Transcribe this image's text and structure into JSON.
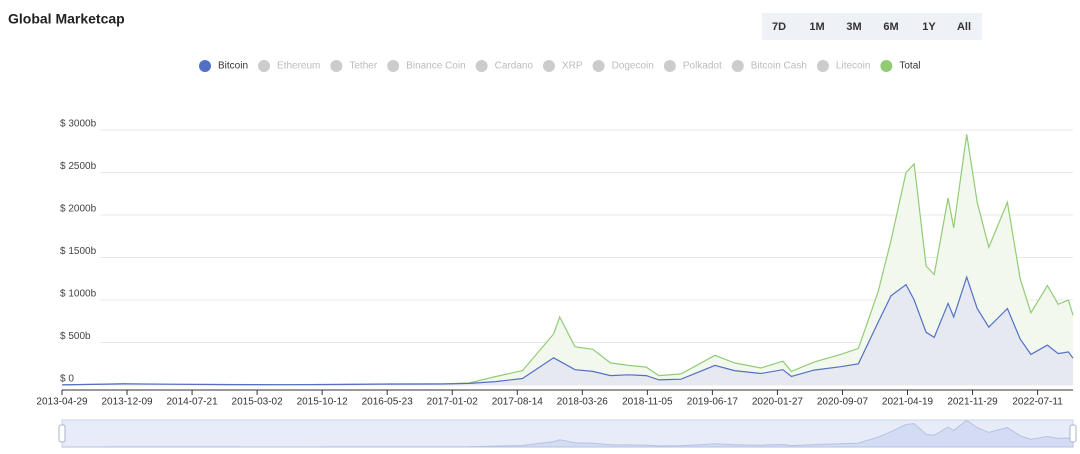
{
  "chart_data": {
    "type": "area",
    "title": "Global Marketcap",
    "range_buttons": [
      "7D",
      "1M",
      "3M",
      "6M",
      "1Y",
      "All"
    ],
    "x": [
      "2013-04-29",
      "2013-12-01",
      "2014-06-01",
      "2014-12-01",
      "2015-06-01",
      "2015-12-01",
      "2016-06-01",
      "2016-12-01",
      "2017-03-01",
      "2017-06-01",
      "2017-09-01",
      "2017-12-17",
      "2018-01-07",
      "2018-03-01",
      "2018-05-01",
      "2018-07-01",
      "2018-09-01",
      "2018-11-01",
      "2018-12-15",
      "2019-03-01",
      "2019-06-26",
      "2019-09-01",
      "2019-12-01",
      "2020-02-15",
      "2020-03-15",
      "2020-06-01",
      "2020-09-01",
      "2020-11-01",
      "2021-01-08",
      "2021-02-21",
      "2021-04-14",
      "2021-05-12",
      "2021-06-22",
      "2021-07-20",
      "2021-09-06",
      "2021-09-25",
      "2021-11-09",
      "2021-12-15",
      "2022-01-24",
      "2022-03-29",
      "2022-05-12",
      "2022-06-18",
      "2022-08-14",
      "2022-09-20",
      "2022-10-25",
      "2022-11-10"
    ],
    "series": [
      {
        "name": "Bitcoin",
        "color": "#5470c6",
        "visible": true,
        "fill": "#e6e9f0",
        "values": [
          1.5,
          13,
          8,
          5,
          3.5,
          6,
          10,
          12,
          19,
          40,
          77,
          320,
          280,
          180,
          160,
          110,
          120,
          110,
          60,
          68,
          230,
          170,
          135,
          180,
          100,
          175,
          215,
          250,
          740,
          1050,
          1180,
          1000,
          620,
          560,
          960,
          800,
          1270,
          900,
          680,
          900,
          540,
          360,
          470,
          370,
          390,
          315
        ]
      },
      {
        "name": "Ethereum",
        "color": "#cccccc",
        "visible": false
      },
      {
        "name": "Tether",
        "color": "#cccccc",
        "visible": false
      },
      {
        "name": "Binance Coin",
        "color": "#cccccc",
        "visible": false
      },
      {
        "name": "Cardano",
        "color": "#cccccc",
        "visible": false
      },
      {
        "name": "XRP",
        "color": "#cccccc",
        "visible": false
      },
      {
        "name": "Dogecoin",
        "color": "#cccccc",
        "visible": false
      },
      {
        "name": "Polkadot",
        "color": "#cccccc",
        "visible": false
      },
      {
        "name": "Bitcoin Cash",
        "color": "#cccccc",
        "visible": false
      },
      {
        "name": "Litecoin",
        "color": "#cccccc",
        "visible": false
      },
      {
        "name": "Total",
        "color": "#91cc75",
        "visible": true,
        "fill": "#f2f8ee",
        "values": [
          1.6,
          15,
          9,
          6,
          4,
          7,
          13,
          14,
          23,
          100,
          170,
          600,
          800,
          450,
          420,
          260,
          230,
          210,
          110,
          130,
          350,
          260,
          200,
          280,
          160,
          270,
          360,
          430,
          1100,
          1700,
          2500,
          2600,
          1400,
          1300,
          2200,
          1850,
          2950,
          2150,
          1620,
          2150,
          1250,
          850,
          1170,
          950,
          1000,
          820
        ]
      }
    ],
    "xlim": [
      "2013-04-29",
      "2022-11-10"
    ],
    "xticks": [
      "2013-04-29",
      "2013-12-09",
      "2014-07-21",
      "2015-03-02",
      "2015-10-12",
      "2016-05-23",
      "2017-01-02",
      "2017-08-14",
      "2018-03-26",
      "2018-11-05",
      "2019-06-17",
      "2020-01-27",
      "2020-09-07",
      "2021-04-19",
      "2021-11-29",
      "2022-07-11"
    ],
    "ylim": [
      0,
      3000
    ],
    "yticks": [
      {
        "value": 0,
        "label": "$ 0"
      },
      {
        "value": 500,
        "label": "$ 500b"
      },
      {
        "value": 1000,
        "label": "$ 1000b"
      },
      {
        "value": 1500,
        "label": "$ 1500b"
      },
      {
        "value": 2000,
        "label": "$ 2000b"
      },
      {
        "value": 2500,
        "label": "$ 2500b"
      },
      {
        "value": 3000,
        "label": "$ 3000b"
      }
    ],
    "grid": true
  }
}
